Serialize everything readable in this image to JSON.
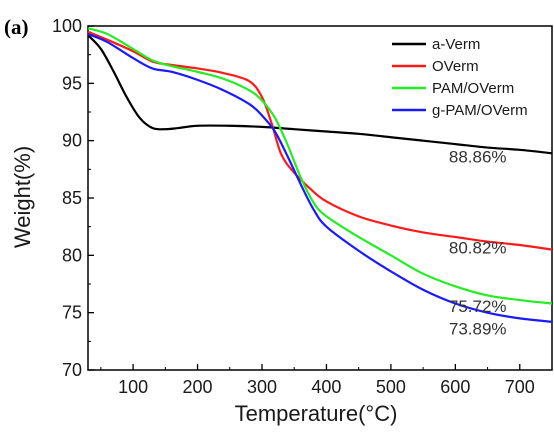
{
  "chart_data": {
    "type": "line",
    "panel_label": "(a)",
    "xlabel": "Temperature(°C)",
    "ylabel": "Weight(%)",
    "xlim": [
      30,
      750
    ],
    "ylim": [
      70,
      100
    ],
    "xticks": [
      100,
      200,
      300,
      400,
      500,
      600,
      700
    ],
    "yticks": [
      70,
      75,
      80,
      85,
      90,
      95,
      100
    ],
    "grid": false,
    "legend_position": "top-right",
    "series": [
      {
        "name": "a-Verm",
        "color": "#000000",
        "x": [
          30,
          50,
          70,
          90,
          110,
          130,
          150,
          170,
          200,
          250,
          300,
          350,
          400,
          450,
          500,
          550,
          600,
          650,
          700,
          750
        ],
        "y": [
          99.2,
          98.0,
          96.0,
          93.8,
          92.0,
          91.1,
          91.0,
          91.1,
          91.3,
          91.3,
          91.2,
          91.0,
          90.8,
          90.6,
          90.3,
          90.0,
          89.7,
          89.4,
          89.2,
          88.9
        ]
      },
      {
        "name": "OVerm",
        "color": "#ff1a1a",
        "x": [
          30,
          60,
          100,
          130,
          160,
          200,
          240,
          280,
          300,
          315,
          330,
          350,
          375,
          400,
          450,
          500,
          550,
          600,
          650,
          700,
          750
        ],
        "y": [
          99.5,
          98.8,
          97.8,
          96.9,
          96.6,
          96.3,
          95.9,
          95.2,
          93.8,
          91.5,
          88.8,
          87.2,
          85.8,
          84.7,
          83.4,
          82.6,
          82.0,
          81.6,
          81.2,
          80.9,
          80.5
        ]
      },
      {
        "name": "PAM/OVerm",
        "color": "#22ee22",
        "x": [
          30,
          60,
          100,
          130,
          160,
          200,
          240,
          280,
          300,
          320,
          340,
          360,
          380,
          400,
          450,
          500,
          550,
          600,
          650,
          700,
          750
        ],
        "y": [
          99.8,
          99.3,
          98.0,
          97.0,
          96.5,
          96.0,
          95.4,
          94.4,
          93.5,
          92.0,
          89.6,
          86.8,
          84.6,
          83.4,
          81.6,
          80.0,
          78.4,
          77.3,
          76.5,
          76.1,
          75.8
        ]
      },
      {
        "name": "g-PAM/OVerm",
        "color": "#1a1aff",
        "x": [
          30,
          60,
          100,
          130,
          160,
          200,
          240,
          280,
          300,
          320,
          340,
          360,
          380,
          400,
          450,
          500,
          550,
          600,
          650,
          700,
          750
        ],
        "y": [
          99.3,
          98.6,
          97.2,
          96.3,
          96.0,
          95.3,
          94.4,
          93.2,
          92.2,
          90.8,
          88.6,
          86.2,
          84.0,
          82.5,
          80.4,
          78.6,
          77.0,
          75.8,
          75.0,
          74.5,
          74.2
        ]
      }
    ],
    "annotations": [
      {
        "text": "88.86%",
        "x": 590,
        "y": 88.6
      },
      {
        "text": "80.82%",
        "x": 590,
        "y": 80.7
      },
      {
        "text": "75.72%",
        "x": 590,
        "y": 75.6
      },
      {
        "text": "73.89%",
        "x": 590,
        "y": 73.6
      }
    ]
  }
}
